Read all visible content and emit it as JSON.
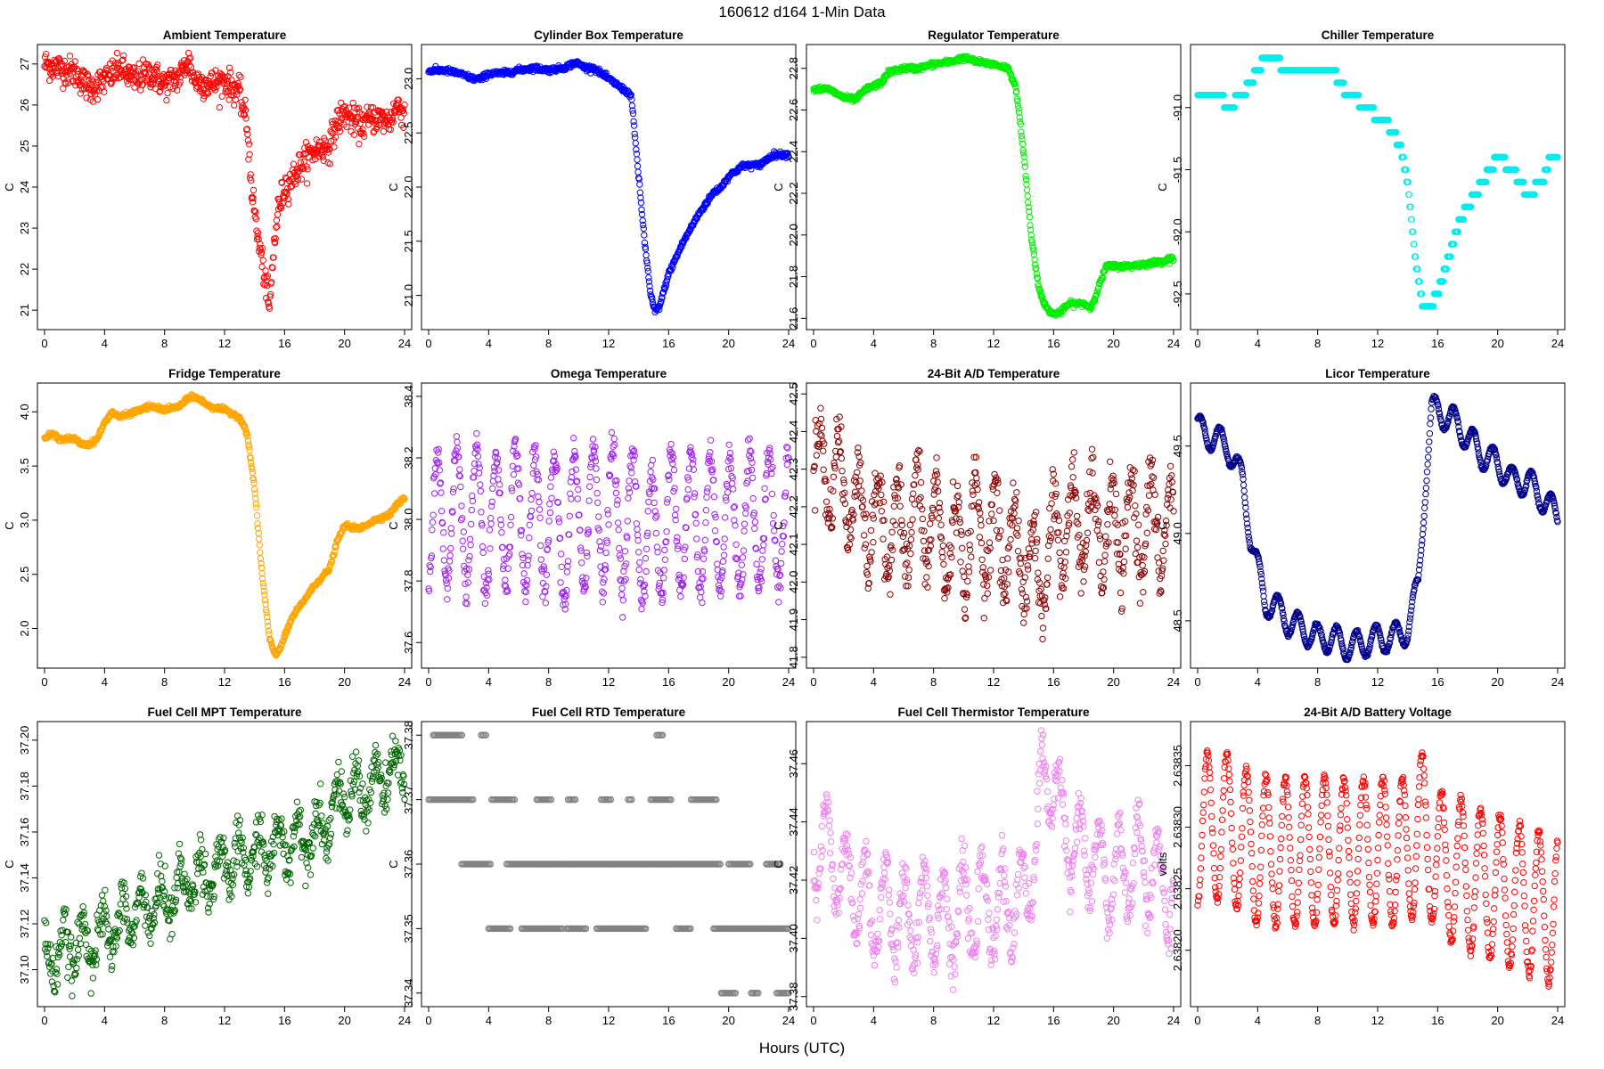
{
  "figure": {
    "title": "160612   d164   1-Min Data",
    "xlabel": "Hours (UTC)"
  },
  "chart_data": [
    {
      "type": "scatter",
      "title": "Ambient Temperature",
      "ylabel": "C",
      "color": "#ff0000",
      "xlim": [
        0,
        24
      ],
      "ylim": [
        20.7,
        27.3
      ],
      "xticks": [
        0,
        4,
        8,
        12,
        16,
        20,
        24
      ],
      "yticks": [
        21,
        22,
        23,
        24,
        25,
        26,
        27
      ],
      "ytick_labels": [
        "21",
        "22",
        "23",
        "24",
        "25",
        "26",
        "27"
      ],
      "x": [
        0,
        1,
        2,
        3,
        4,
        5,
        6,
        7,
        8,
        9,
        9.6,
        10,
        11,
        12,
        13,
        13.5,
        13.8,
        14.2,
        14.6,
        15,
        15.3,
        15.6,
        16,
        16.5,
        17,
        18,
        19,
        19.5,
        20,
        21,
        22,
        23,
        23.5,
        24
      ],
      "y": [
        27.0,
        26.9,
        26.8,
        26.4,
        26.6,
        26.9,
        26.6,
        26.8,
        26.5,
        26.7,
        27.1,
        26.6,
        26.5,
        26.6,
        26.3,
        25.5,
        24.0,
        22.8,
        22.0,
        21.0,
        22.6,
        23.5,
        24.0,
        24.2,
        24.5,
        24.9,
        25.0,
        25.6,
        25.8,
        25.5,
        25.7,
        25.6,
        26.0,
        25.8
      ],
      "noise": 0.18
    },
    {
      "type": "scatter",
      "title": "Cylinder Box Temperature",
      "ylabel": "C",
      "color": "#0000ff",
      "xlim": [
        0,
        24
      ],
      "ylim": [
        20.75,
        23.25
      ],
      "xticks": [
        0,
        4,
        8,
        12,
        16,
        20,
        24
      ],
      "yticks": [
        21.0,
        21.5,
        22.0,
        22.5,
        23.0
      ],
      "ytick_labels": [
        "21.0",
        "21.5",
        "22.0",
        "22.5",
        "23.0"
      ],
      "x": [
        0,
        1,
        2,
        3,
        3.5,
        4,
        5,
        6,
        7,
        8,
        9,
        9.8,
        10.5,
        11,
        12,
        13,
        13.5,
        14,
        14.4,
        14.8,
        15.1,
        15.4,
        16,
        17,
        18,
        19,
        19.5,
        20,
        21,
        22,
        23,
        24
      ],
      "y": [
        23.07,
        23.08,
        23.05,
        23.0,
        23.0,
        23.05,
        23.05,
        23.08,
        23.1,
        23.08,
        23.1,
        23.15,
        23.1,
        23.1,
        23.0,
        22.9,
        22.85,
        22.1,
        21.5,
        21.0,
        20.85,
        20.9,
        21.2,
        21.5,
        21.75,
        21.95,
        22.0,
        22.1,
        22.2,
        22.2,
        22.3,
        22.3
      ],
      "noise": 0.012
    },
    {
      "type": "scatter",
      "title": "Regulator Temperature",
      "ylabel": "C",
      "color": "#00ee00",
      "xlim": [
        0,
        24
      ],
      "ylim": [
        21.58,
        22.88
      ],
      "xticks": [
        0,
        4,
        8,
        12,
        16,
        20,
        24
      ],
      "yticks": [
        21.6,
        21.8,
        22.0,
        22.2,
        22.4,
        22.6,
        22.8
      ],
      "ytick_labels": [
        "21.6",
        "21.8",
        "22.0",
        "22.2",
        "22.4",
        "22.6",
        "22.8"
      ],
      "x": [
        0,
        1,
        1.5,
        2,
        2.8,
        3.5,
        4.5,
        5,
        6,
        7,
        8,
        9,
        10,
        11,
        12,
        13,
        13.5,
        14,
        14.5,
        15,
        15.5,
        16,
        16.5,
        17,
        18,
        18.5,
        19,
        19.5,
        20,
        21,
        22,
        23,
        24
      ],
      "y": [
        22.7,
        22.7,
        22.68,
        22.66,
        22.65,
        22.7,
        22.73,
        22.78,
        22.8,
        22.8,
        22.82,
        22.83,
        22.85,
        22.83,
        22.82,
        22.8,
        22.7,
        22.4,
        22.0,
        21.75,
        21.65,
        21.62,
        21.63,
        21.67,
        21.67,
        21.65,
        21.75,
        21.85,
        21.85,
        21.85,
        21.86,
        21.87,
        21.89
      ],
      "noise": 0.006
    },
    {
      "type": "scatter",
      "title": "Chiller Temperature",
      "ylabel": "C",
      "color": "#00eeee",
      "xlim": [
        0,
        24
      ],
      "ylim": [
        -92.73,
        -90.55
      ],
      "xticks": [
        0,
        4,
        8,
        12,
        16,
        20,
        24
      ],
      "yticks": [
        -92.5,
        -92.0,
        -91.5,
        -91.0
      ],
      "ytick_labels": [
        "-92.5",
        "-92.0",
        "-91.5",
        "-91.0"
      ],
      "x": [
        0,
        1.5,
        2,
        3,
        3.5,
        4,
        4.5,
        5,
        6,
        7,
        8,
        8.5,
        9,
        10,
        10.5,
        11,
        11.5,
        12,
        12.5,
        13,
        13.5,
        14,
        14.5,
        15,
        15.5,
        16,
        16.5,
        17,
        17.5,
        18,
        19,
        19.5,
        20,
        21,
        21.5,
        22,
        23,
        23.5,
        24
      ],
      "y": [
        -90.9,
        -90.9,
        -91.0,
        -90.9,
        -90.8,
        -90.7,
        -90.6,
        -90.6,
        -90.7,
        -90.7,
        -90.7,
        -90.7,
        -90.7,
        -90.9,
        -90.9,
        -91.0,
        -91.0,
        -91.1,
        -91.1,
        -91.2,
        -91.3,
        -91.6,
        -92.2,
        -92.6,
        -92.6,
        -92.5,
        -92.3,
        -92.1,
        -91.9,
        -91.8,
        -91.6,
        -91.5,
        -91.4,
        -91.5,
        -91.6,
        -91.7,
        -91.6,
        -91.4,
        -91.4
      ],
      "quantum": 0.1,
      "noise": 0
    },
    {
      "type": "scatter",
      "title": "Fridge Temperature",
      "ylabel": "C",
      "color": "#ffa500",
      "xlim": [
        0,
        24
      ],
      "ylim": [
        1.7,
        4.2
      ],
      "xticks": [
        0,
        4,
        8,
        12,
        16,
        20,
        24
      ],
      "yticks": [
        2.0,
        2.5,
        3.0,
        3.5,
        4.0
      ],
      "ytick_labels": [
        "2.0",
        "2.5",
        "3.0",
        "3.5",
        "4.0"
      ],
      "x": [
        0,
        0.5,
        1,
        2,
        2.5,
        3,
        3.5,
        4,
        4.5,
        5,
        6,
        7,
        8,
        9,
        9.8,
        10.5,
        11,
        12,
        13,
        13.5,
        14,
        14.5,
        15,
        15.4,
        15.8,
        16.5,
        17,
        18,
        19,
        19.5,
        20,
        21,
        22,
        23,
        23.5,
        24
      ],
      "y": [
        3.75,
        3.8,
        3.75,
        3.75,
        3.7,
        3.7,
        3.75,
        3.9,
        4.0,
        3.95,
        4.0,
        4.05,
        4.02,
        4.05,
        4.15,
        4.1,
        4.05,
        4.02,
        3.95,
        3.8,
        3.3,
        2.5,
        1.9,
        1.75,
        1.85,
        2.1,
        2.2,
        2.4,
        2.55,
        2.8,
        2.95,
        2.92,
        3.0,
        3.05,
        3.15,
        3.2
      ],
      "noise": 0.01
    },
    {
      "type": "scatter",
      "title": "Omega Temperature",
      "ylabel": "C",
      "color": "#a020f0",
      "xlim": [
        0,
        24
      ],
      "ylim": [
        37.54,
        38.42
      ],
      "xticks": [
        0,
        4,
        8,
        12,
        16,
        20,
        24
      ],
      "yticks": [
        37.6,
        37.8,
        38.0,
        38.2,
        38.4
      ],
      "ytick_labels": [
        "37.6",
        "37.8",
        "38.0",
        "38.2",
        "38.4"
      ],
      "x": [
        0,
        1,
        2,
        3,
        4,
        5,
        6,
        7,
        8,
        9,
        10,
        11,
        12,
        13,
        14,
        15,
        16,
        17,
        18,
        19,
        20,
        21,
        22,
        23,
        24
      ],
      "y": [
        38.0,
        38.0,
        38.02,
        38.0,
        37.98,
        38.0,
        38.0,
        37.98,
        38.0,
        37.95,
        38.0,
        38.02,
        38.02,
        38.0,
        37.98,
        37.92,
        38.0,
        38.0,
        37.98,
        38.0,
        37.98,
        38.0,
        38.0,
        38.0,
        38.0
      ],
      "osc": 0.22,
      "noise": 0.03
    },
    {
      "type": "scatter",
      "title": "24-Bit A/D Temperature",
      "ylabel": "C",
      "color": "#8b0000",
      "xlim": [
        0,
        24
      ],
      "ylim": [
        41.79,
        42.51
      ],
      "xticks": [
        0,
        4,
        8,
        12,
        16,
        20,
        24
      ],
      "yticks": [
        41.8,
        41.9,
        42.0,
        42.1,
        42.2,
        42.3,
        42.4,
        42.5
      ],
      "ytick_labels": [
        "41.8",
        "41.9",
        "42.0",
        "42.1",
        "42.2",
        "42.3",
        "42.4",
        "42.5"
      ],
      "x": [
        0,
        1,
        2,
        3,
        4,
        5,
        6,
        7,
        8,
        9,
        10,
        11,
        12,
        13,
        14,
        15,
        16,
        17,
        18,
        19,
        20,
        21,
        22,
        23,
        24
      ],
      "y": [
        42.3,
        42.3,
        42.25,
        42.2,
        42.15,
        42.15,
        42.15,
        42.18,
        42.15,
        42.1,
        42.1,
        42.15,
        42.12,
        42.1,
        42.08,
        42.0,
        42.12,
        42.15,
        42.15,
        42.15,
        42.12,
        42.15,
        42.15,
        42.15,
        42.12
      ],
      "osc": 0.13,
      "noise": 0.04
    },
    {
      "type": "scatter",
      "title": "Licor Temperature",
      "ylabel": "C",
      "color": "#00008b",
      "xlim": [
        0,
        24
      ],
      "ylim": [
        48.27,
        49.82
      ],
      "xticks": [
        0,
        4,
        8,
        12,
        16,
        20,
        24
      ],
      "yticks": [
        48.5,
        49.0,
        49.5
      ],
      "ytick_labels": [
        "48.5",
        "49.0",
        "49.5"
      ],
      "x": [
        0,
        1,
        2,
        3,
        3.5,
        4,
        4.5,
        5,
        6,
        7,
        8,
        9,
        10,
        11,
        12,
        13,
        14,
        14.7,
        15.2,
        15.6,
        16,
        17,
        18,
        19,
        20,
        21,
        22,
        23,
        24
      ],
      "y": [
        49.6,
        49.55,
        49.5,
        49.3,
        49.0,
        48.8,
        48.6,
        48.6,
        48.5,
        48.45,
        48.4,
        48.4,
        48.35,
        48.37,
        48.4,
        48.4,
        48.45,
        48.7,
        49.3,
        49.7,
        49.7,
        49.65,
        49.55,
        49.45,
        49.4,
        49.3,
        49.3,
        49.2,
        49.1
      ],
      "osc": 0.08,
      "noise": 0.004
    },
    {
      "type": "scatter",
      "title": "Fuel Cell MPT Temperature",
      "ylabel": "C",
      "color": "#006400",
      "xlim": [
        0,
        24
      ],
      "ylim": [
        37.087,
        37.205
      ],
      "xticks": [
        0,
        4,
        8,
        12,
        16,
        20,
        24
      ],
      "yticks": [
        37.1,
        37.12,
        37.14,
        37.16,
        37.18,
        37.2
      ],
      "ytick_labels": [
        "37.10",
        "37.12",
        "37.14",
        "37.16",
        "37.18",
        "37.20"
      ],
      "x": [
        0,
        2,
        4,
        6,
        8,
        10,
        12,
        14,
        16,
        18,
        20,
        22,
        24
      ],
      "y": [
        37.105,
        37.11,
        37.115,
        37.125,
        37.13,
        37.14,
        37.145,
        37.15,
        37.155,
        37.16,
        37.175,
        37.18,
        37.19
      ],
      "osc": 0.01,
      "noise": 0.005
    },
    {
      "type": "scatter",
      "title": "Fuel Cell RTD Temperature",
      "ylabel": "C",
      "color": "#808080",
      "xlim": [
        0,
        24
      ],
      "ylim": [
        37.339,
        37.381
      ],
      "xticks": [
        0,
        4,
        8,
        12,
        16,
        20,
        24
      ],
      "yticks": [
        37.34,
        37.35,
        37.36,
        37.37,
        37.38
      ],
      "ytick_labels": [
        "37.34",
        "37.35",
        "37.36",
        "37.37",
        "37.38"
      ],
      "levels": [
        {
          "y": 37.38,
          "ranges": [
            [
              0.3,
              2.3
            ],
            [
              3.5,
              3.9
            ],
            [
              15.2,
              15.6
            ]
          ]
        },
        {
          "y": 37.37,
          "ranges": [
            [
              0,
              3
            ],
            [
              4.2,
              5.8
            ],
            [
              7.2,
              8.2
            ],
            [
              9.3,
              9.8
            ],
            [
              11.5,
              12.2
            ],
            [
              13.3,
              13.6
            ],
            [
              14.8,
              16.2
            ],
            [
              17.5,
              19.2
            ]
          ]
        },
        {
          "y": 37.36,
          "ranges": [
            [
              2.2,
              4.2
            ],
            [
              5.2,
              19.5
            ],
            [
              20,
              21.5
            ],
            [
              22.5,
              23.5
            ]
          ]
        },
        {
          "y": 37.35,
          "ranges": [
            [
              4,
              5.5
            ],
            [
              6.2,
              9
            ],
            [
              9.2,
              10.5
            ],
            [
              11.2,
              14.5
            ],
            [
              16.5,
              17.5
            ],
            [
              19,
              24
            ]
          ]
        },
        {
          "y": 37.34,
          "ranges": [
            [
              19.5,
              20.5
            ],
            [
              21.5,
              22
            ],
            [
              23.2,
              24
            ]
          ]
        }
      ],
      "noise": 0
    },
    {
      "type": "scatter",
      "title": "Fuel Cell Thermistor Temperature",
      "ylabel": "C",
      "color": "#ee82ee",
      "xlim": [
        0,
        24
      ],
      "ylim": [
        37.379,
        37.472
      ],
      "xticks": [
        0,
        4,
        8,
        12,
        16,
        20,
        24
      ],
      "yticks": [
        37.38,
        37.4,
        37.42,
        37.44,
        37.46
      ],
      "ytick_labels": [
        "37.38",
        "37.40",
        "37.42",
        "37.44",
        "37.46"
      ],
      "x": [
        0,
        1,
        2,
        3,
        4,
        5,
        6,
        7,
        8,
        9,
        10,
        11,
        12,
        13,
        14,
        14.6,
        15.2,
        15.8,
        16.5,
        17,
        18,
        19,
        20,
        21,
        22,
        23,
        24
      ],
      "y": [
        37.43,
        37.43,
        37.42,
        37.415,
        37.41,
        37.41,
        37.405,
        37.41,
        37.41,
        37.405,
        37.41,
        37.41,
        37.41,
        37.41,
        37.415,
        37.425,
        37.45,
        37.46,
        37.44,
        37.435,
        37.43,
        37.425,
        37.42,
        37.425,
        37.425,
        37.42,
        37.415
      ],
      "osc": 0.016,
      "noise": 0.004
    },
    {
      "type": "scatter",
      "title": "24-Bit A/D Battery Voltage",
      "ylabel": "volts",
      "color": "#ff0000",
      "xlim": [
        0,
        24
      ],
      "ylim": [
        2.63816,
        2.63838
      ],
      "xticks": [
        0,
        4,
        8,
        12,
        16,
        20,
        24
      ],
      "yticks": [
        2.6382,
        2.63825,
        2.6383,
        2.63835
      ],
      "ytick_labels": [
        "2.63820",
        "2.63825",
        "2.63830",
        "2.63835"
      ],
      "x": [
        0,
        2,
        4,
        6,
        8,
        10,
        12,
        14,
        15,
        16,
        18,
        20,
        22,
        24
      ],
      "y": [
        2.6383,
        2.6383,
        2.63828,
        2.63828,
        2.63828,
        2.63828,
        2.63828,
        2.63828,
        2.6383,
        2.63827,
        2.63826,
        2.63825,
        2.63824,
        2.63823
      ],
      "osc": 6e-05,
      "noise": 2e-06
    }
  ]
}
